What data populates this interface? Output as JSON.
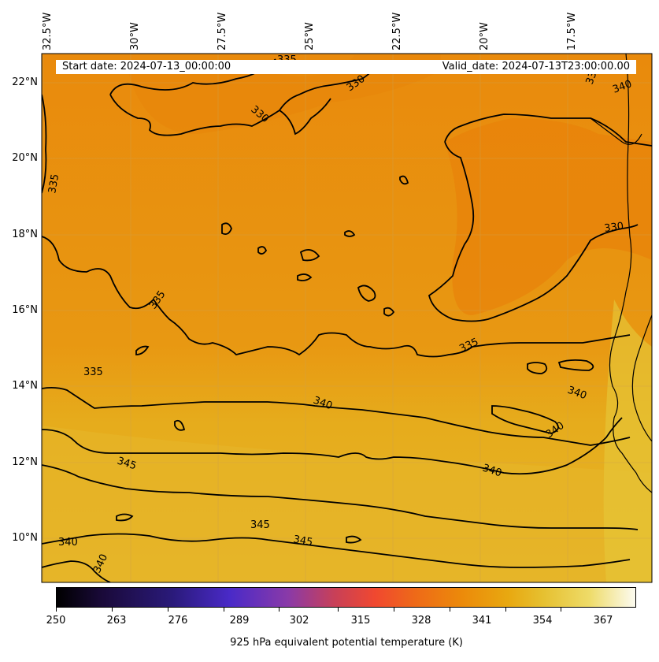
{
  "header": {
    "start_date": "Start date: 2024-07-13_00:00:00",
    "valid_date": "Valid_date: 2024-07-13T23:00:00.00"
  },
  "longitude_labels": [
    "32.5°W",
    "30°W",
    "27.5°W",
    "25°W",
    "22.5°W",
    "20°W",
    "17.5°W"
  ],
  "latitude_labels": [
    "22°N",
    "20°N",
    "18°N",
    "16°N",
    "14°N",
    "12°N",
    "10°N"
  ],
  "contour_labels": [
    "335",
    "330",
    "330",
    "330",
    "340",
    "335",
    "330",
    "335",
    "335",
    "340",
    "340",
    "340",
    "345",
    "340",
    "345",
    "345",
    "340",
    "340"
  ],
  "colorbar": {
    "ticks": [
      "250",
      "263",
      "276",
      "289",
      "302",
      "315",
      "328",
      "341",
      "354",
      "367"
    ],
    "title": "925 hPa equivalent potential temperature (K)",
    "colors": [
      "#000000",
      "#2a1a7a",
      "#4a2ac8",
      "#c84058",
      "#f04830",
      "#ec8a0a",
      "#e8a810",
      "#e6c030",
      "#fcfbf0"
    ]
  },
  "colors": {
    "field_warm": "#e98a0c",
    "field_mid": "#e6a416",
    "field_cool": "#e6b628",
    "contour": "#000000"
  }
}
